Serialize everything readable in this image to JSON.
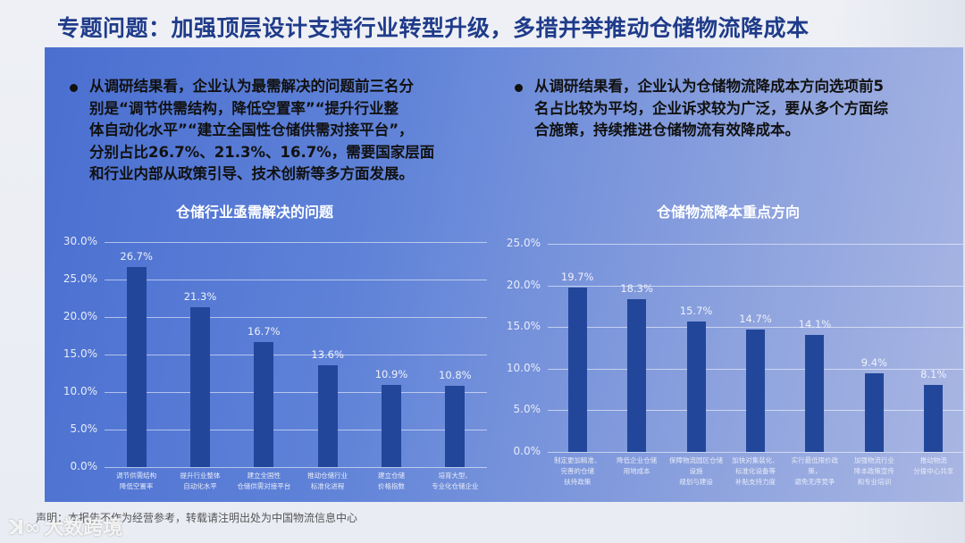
{
  "header": {
    "title": "专题问题：加强顶层设计支持行业转型升级，多措并举推动仓储物流降成本"
  },
  "left_bullet": {
    "lines": [
      "从调研结果看，企业认为最需解决的问题前三名分",
      "别是“调节供需结构，降低空置率”“提升行业整",
      "体自动化水平”“建立全国性仓储供需对接平台”，",
      "分别占比26.7%、21.3%、16.7%，需要国家层面",
      "和行业内部从政策引导、技术创新等多方面发展。"
    ]
  },
  "right_bullet": {
    "lines": [
      "从调研结果看，企业认为仓储物流降成本方向选项前5",
      "名占比较为平均，企业诉求较为广泛，要从多个方面综",
      "合施策，持续推进仓储物流有效降成本。"
    ]
  },
  "footer": {
    "disclaimer": "声明：本报告不作为经营参考，转载请注明出处为中国物流信息中心",
    "watermark": "大数跨境",
    "watermark_logo": "ꓘ∞"
  },
  "colors": {
    "bar": "#22479a",
    "title": "#1f3b8a",
    "panel_start": "#4a6fd0",
    "panel_end": "#a9b6e3"
  },
  "chart_data": [
    {
      "type": "bar",
      "title": "仓储行业亟需解决的问题",
      "categories": [
        "调节供需结构\n降低空置率",
        "提升行业整体\n自动化水平",
        "建立全国性\n仓储供需对接平台",
        "推动仓储行业\n标准化进程",
        "建立仓储\n价格指数",
        "培育大型、\n专业化仓储企业"
      ],
      "values": [
        26.7,
        21.3,
        16.7,
        13.6,
        10.9,
        10.8
      ],
      "value_labels": [
        "26.7%",
        "21.3%",
        "16.7%",
        "13.6%",
        "10.9%",
        "10.8%"
      ],
      "yticks": [
        "0.0%",
        "5.0%",
        "10.0%",
        "15.0%",
        "20.0%",
        "25.0%",
        "30.0%"
      ],
      "ylim": [
        0,
        30
      ],
      "xlabel": "",
      "ylabel": "",
      "grid": true,
      "legend": "none"
    },
    {
      "type": "bar",
      "title": "仓储物流降本重点方向",
      "categories": [
        "制定更加精准、\n完善的仓储\n扶持政策",
        "降低企业仓储\n用地成本",
        "保障物流园区仓储设施\n规划与建设",
        "加快对集装化、\n标准化设备等\n补贴支持力度",
        "实行最低限价政策，\n避免无序竞争",
        "加强物流行业\n降本政策宣传\n和专业培训",
        "推动物流\n分拨中心共享"
      ],
      "values": [
        19.7,
        18.3,
        15.7,
        14.7,
        14.1,
        9.4,
        8.1
      ],
      "value_labels": [
        "19.7%",
        "18.3%",
        "15.7%",
        "14.7%",
        "14.1%",
        "9.4%",
        "8.1%"
      ],
      "yticks": [
        "0.0%",
        "5.0%",
        "10.0%",
        "15.0%",
        "20.0%",
        "25.0%"
      ],
      "ylim": [
        0,
        25
      ],
      "xlabel": "",
      "ylabel": "",
      "grid": true,
      "legend": "none"
    }
  ]
}
